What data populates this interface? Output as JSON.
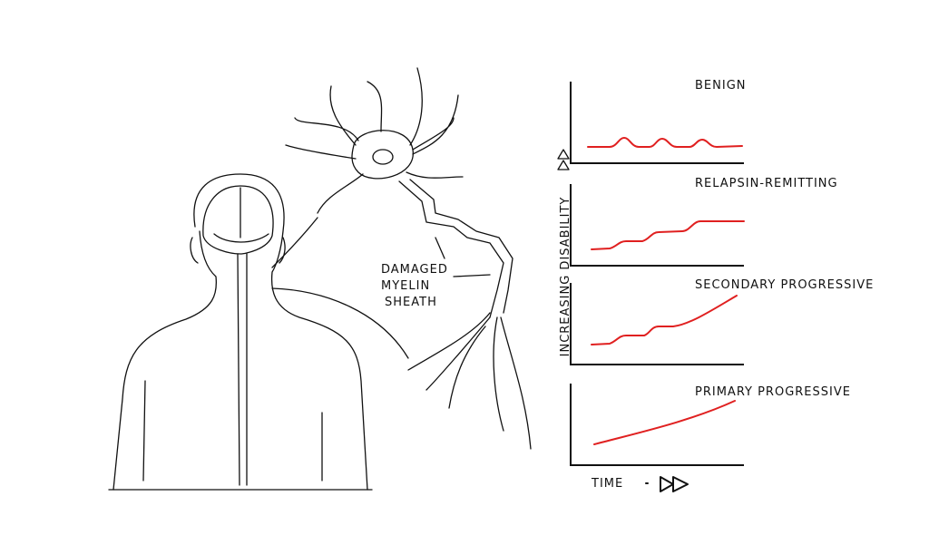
{
  "annotation": {
    "lines": [
      "DAMAGED",
      "MYELIN",
      "SHEATH"
    ]
  },
  "y_axis_label": "INCREASING DISABILITY",
  "x_axis_label": "TIME",
  "panels": [
    {
      "title": "BENIGN"
    },
    {
      "title": "RELAPSIN-REMITTING"
    },
    {
      "title": "SECONDARY PROGRESSIVE"
    },
    {
      "title": "PRIMARY PROGRESSIVE"
    }
  ]
}
